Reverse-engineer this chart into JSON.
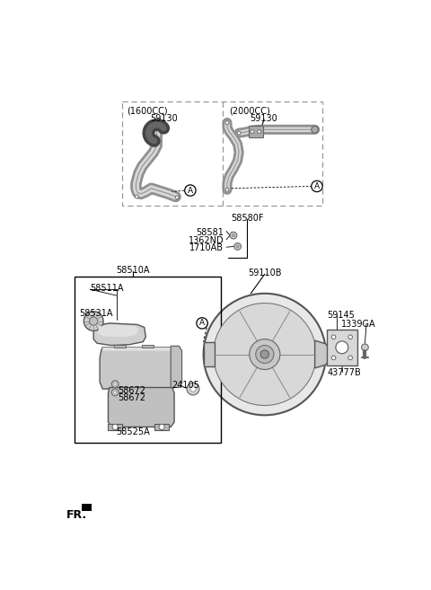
{
  "bg": "#ffffff",
  "lc": "#000000",
  "gc": "#888888",
  "lgc": "#bbbbbb",
  "dbc": "#999999",
  "fs": 7.0,
  "fs_sm": 6.5,
  "labels": {
    "1600cc": "(1600CC)",
    "2000cc": "(2000CC)",
    "59130": "59130",
    "58580F": "58580F",
    "58581": "58581",
    "1362ND": "1362ND",
    "1710AB": "1710AB",
    "58510A": "58510A",
    "58511A": "58511A",
    "58531A": "58531A",
    "58672": "58672",
    "24105": "24105",
    "58525A": "58525A",
    "59110B": "59110B",
    "59145": "59145",
    "1339GA": "1339GA",
    "43777B": "43777B",
    "fr": "FR."
  }
}
